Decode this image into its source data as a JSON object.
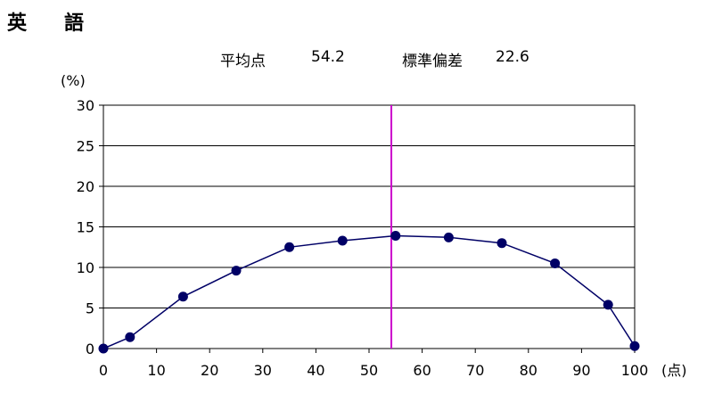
{
  "title": "英　語",
  "stats": {
    "mean_label": "平均点",
    "mean_value": "54.2",
    "sd_label": "標準偏差",
    "sd_value": "22.6"
  },
  "chart_data": {
    "type": "line",
    "ylabel": "(%)",
    "xlabel": "(点)",
    "xlim": [
      0,
      100
    ],
    "ylim": [
      0,
      30
    ],
    "x_ticks": [
      0,
      10,
      20,
      30,
      40,
      50,
      60,
      70,
      80,
      90,
      100
    ],
    "y_ticks": [
      0,
      5,
      10,
      15,
      20,
      25,
      30
    ],
    "grid": "horizontal",
    "series": [
      {
        "x": [
          0,
          5,
          15,
          25,
          35,
          45,
          55,
          65,
          75,
          85,
          95,
          100
        ],
        "y": [
          0.0,
          1.4,
          6.4,
          9.6,
          12.5,
          13.3,
          13.9,
          13.7,
          13.0,
          10.5,
          5.4,
          0.3
        ],
        "color": "#000066"
      }
    ],
    "mean_line": {
      "x": 54.2,
      "color": "#cc00cc"
    }
  }
}
